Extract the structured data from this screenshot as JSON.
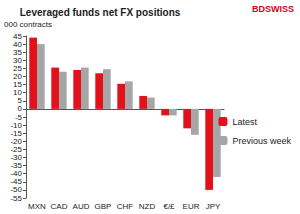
{
  "chart_data": {
    "type": "bar",
    "title": "Leveraged funds net FX positions",
    "ylabel": "000 contracts",
    "annotations": [
      "BDSWISS"
    ],
    "categories": [
      "MXN",
      "CAD",
      "AUD",
      "GBP",
      "CHF",
      "NZD",
      "€/£",
      "EUR",
      "JPY"
    ],
    "series": [
      {
        "name": "Latest",
        "color": "#e3121a",
        "values": [
          44,
          25.5,
          24,
          22,
          15.5,
          8,
          -4,
          -12,
          -50
        ]
      },
      {
        "name": "Previous week",
        "color": "#a6a6a6",
        "values": [
          40,
          23,
          25.5,
          24.5,
          17,
          7,
          -4,
          -16,
          -42
        ]
      }
    ],
    "ylim": [
      -55,
      45
    ],
    "yticks": [
      -55,
      -50,
      -45,
      -40,
      -35,
      -30,
      -25,
      -20,
      -15,
      -10,
      -5,
      0,
      5,
      10,
      15,
      20,
      25,
      30,
      35,
      40,
      45
    ],
    "grid": false,
    "legend": "right"
  }
}
